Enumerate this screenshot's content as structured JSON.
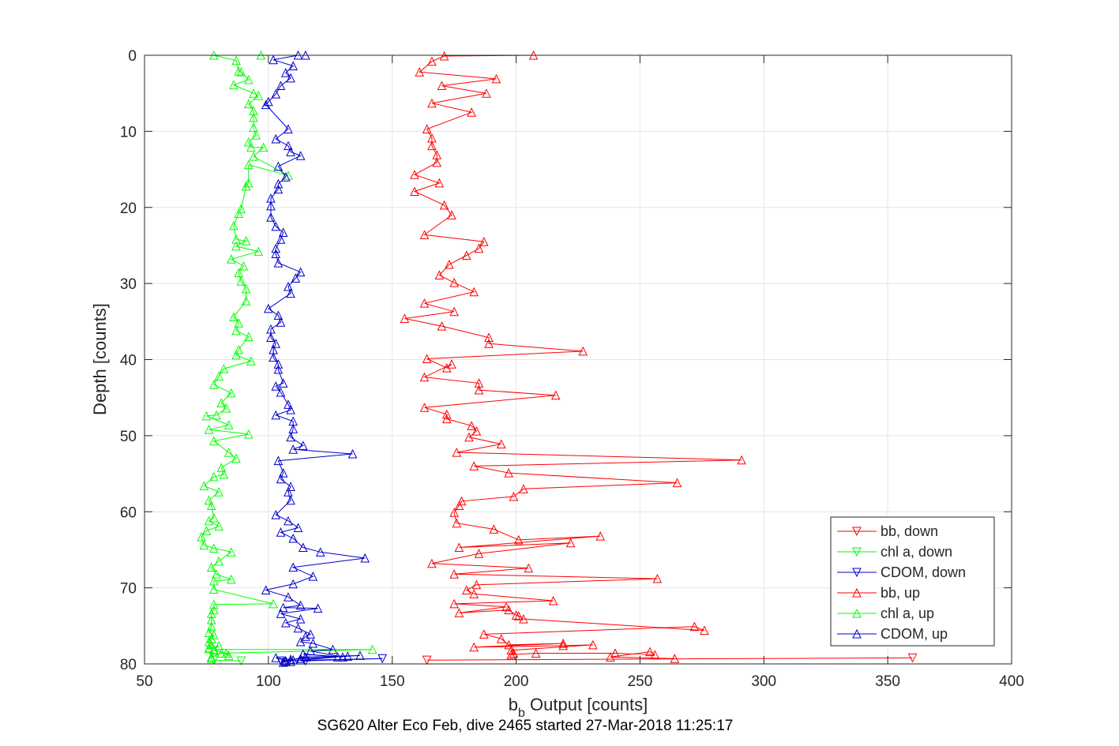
{
  "chart_data": {
    "type": "line",
    "title": "SG620 Alter Eco Feb, dive 2465 started 27-Mar-2018 11:25:17",
    "xlabel": "b_b Output [counts]",
    "xlabel_main": "b",
    "xlabel_sub": "b",
    "xlabel_rest": " Output [counts]",
    "ylabel": "Depth [counts]",
    "xlim": [
      50,
      400
    ],
    "ylim": [
      0,
      80
    ],
    "y_reversed": true,
    "xticks": [
      50,
      100,
      150,
      200,
      250,
      300,
      350,
      400
    ],
    "yticks": [
      0,
      10,
      20,
      30,
      40,
      50,
      60,
      70,
      80
    ],
    "grid": true,
    "legend_position": "bottom-right",
    "colors": {
      "red": "#ff0000",
      "green": "#00ff00",
      "blue": "#0000cc"
    },
    "series": [
      {
        "name": "bb, down",
        "color": "#ff0000",
        "marker": "triangle-down",
        "x": [
          164,
          360
        ],
        "y": [
          79.5,
          79.2
        ]
      },
      {
        "name": "chl a, down",
        "color": "#00ff00",
        "marker": "triangle-down",
        "x": [
          78,
          89
        ],
        "y": [
          79.5,
          79.6
        ]
      },
      {
        "name": "CDOM, down",
        "color": "#0000cc",
        "marker": "triangle-down",
        "x": [
          105,
          146,
          115
        ],
        "y": [
          79.6,
          79.3,
          79.6
        ]
      },
      {
        "name": "bb, up",
        "color": "#ff0000",
        "marker": "triangle-up",
        "x": [
          207,
          171,
          166,
          161,
          192,
          170,
          188,
          166,
          182,
          164,
          166,
          166,
          168,
          168,
          159,
          169,
          159,
          171,
          174,
          163,
          187,
          185,
          180,
          173,
          169,
          175,
          183,
          163,
          175,
          155,
          170,
          189,
          189,
          227,
          164,
          172,
          174,
          163,
          185,
          185,
          216,
          163,
          172,
          172,
          182,
          184,
          181,
          194,
          176,
          291,
          183,
          197,
          265,
          203,
          199,
          178,
          177,
          175,
          176,
          191,
          201,
          234,
          177,
          222,
          185,
          166,
          205,
          175,
          257,
          184,
          180,
          183,
          215,
          175,
          196,
          177,
          197,
          200,
          201,
          203,
          276,
          272,
          187,
          194,
          197,
          219,
          183,
          219,
          231,
          198,
          199,
          198,
          208,
          240,
          256,
          254,
          238,
          264
        ],
        "y": [
          0,
          0.1,
          0.8,
          2.2,
          3.1,
          4,
          5,
          6.3,
          7.5,
          9.7,
          10.9,
          11.9,
          13.1,
          14.1,
          15.7,
          16.8,
          17.9,
          19.7,
          21,
          23.6,
          24.5,
          25.4,
          26.3,
          27.5,
          28.9,
          29.9,
          31.1,
          32.6,
          33.7,
          34.6,
          35.6,
          37.1,
          37.9,
          38.9,
          39.9,
          41.1,
          40.6,
          42.3,
          43.1,
          44,
          44.7,
          46.3,
          47.2,
          47.8,
          48.7,
          49.4,
          50.2,
          51.1,
          52.2,
          53.2,
          54,
          54.9,
          56.2,
          57,
          58,
          58.6,
          59.2,
          60.1,
          61.5,
          62.3,
          63.7,
          63.2,
          64.7,
          64.1,
          65.5,
          66.8,
          67.4,
          68.2,
          68.8,
          69.6,
          70.3,
          70.8,
          71.7,
          72.1,
          72.5,
          73.3,
          72.9,
          73.6,
          73.7,
          74.1,
          75.6,
          75.1,
          76.1,
          76.7,
          77.5,
          77.3,
          77.8,
          77.6,
          77.5,
          78.2,
          78.6,
          78.8,
          78.6,
          78.6,
          78.8,
          78.4,
          79.1,
          79.3
        ]
      },
      {
        "name": "chl a, up",
        "color": "#00ff00",
        "marker": "triangle-up",
        "x": [
          97,
          78,
          87,
          88,
          89,
          92,
          86,
          94,
          96,
          92,
          94,
          94,
          94,
          95,
          92,
          93,
          98,
          94,
          108,
          92,
          92,
          91,
          89,
          88,
          86,
          87,
          91,
          87,
          96,
          85,
          90,
          88,
          89,
          91,
          91,
          86,
          88,
          87,
          92,
          88,
          87,
          93,
          82,
          80,
          78,
          85,
          81,
          83,
          79,
          75,
          84,
          76,
          92,
          78,
          84,
          87,
          81,
          82,
          78,
          74,
          80,
          76,
          77,
          78,
          76,
          80,
          75,
          73,
          74,
          78,
          85,
          80,
          77,
          79,
          85,
          78,
          78,
          102,
          78,
          78,
          77,
          77,
          77,
          76,
          78,
          77,
          76,
          77,
          76,
          76,
          80,
          78,
          83,
          84,
          78,
          142,
          81,
          77,
          77
        ],
        "y": [
          0,
          0,
          0.7,
          2.1,
          2.2,
          3.2,
          3.9,
          5,
          5.3,
          6.4,
          7.3,
          8.2,
          9.5,
          10.5,
          11.4,
          12.1,
          12.1,
          13.3,
          15.8,
          14.4,
          16.8,
          17.2,
          20.2,
          20.8,
          22.4,
          24.2,
          24.4,
          25.1,
          25.8,
          26.8,
          27.7,
          28.6,
          29.7,
          30.7,
          32.3,
          34.4,
          35.2,
          36.2,
          37,
          38.7,
          39.4,
          40.2,
          41.2,
          42.2,
          43.3,
          44.4,
          45.7,
          46.4,
          47.3,
          47.4,
          48.6,
          49.2,
          49.8,
          50.7,
          52.2,
          53,
          54.2,
          55.1,
          55.4,
          56.6,
          57.4,
          58.5,
          59.2,
          60.8,
          61.2,
          61.9,
          62.5,
          63.3,
          64.4,
          64.8,
          65.3,
          66.5,
          67.3,
          68.2,
          68.9,
          69.1,
          70.2,
          72.1,
          72.2,
          72.9,
          73.4,
          74.2,
          75.1,
          75.9,
          76.2,
          76.7,
          77.1,
          77.5,
          77.9,
          78,
          77.6,
          78.2,
          78.6,
          78.9,
          78.1,
          78.1,
          78.6,
          79.1,
          79.3
        ]
      },
      {
        "name": "CDOM, up",
        "color": "#0000cc",
        "marker": "triangle-up",
        "x": [
          115,
          112,
          102,
          110,
          107,
          109,
          105,
          103,
          100,
          99,
          108,
          103,
          108,
          109,
          113,
          104,
          107,
          104,
          104,
          101,
          101,
          101,
          103,
          106,
          105,
          103,
          103,
          104,
          113,
          111,
          108,
          109,
          100,
          104,
          105,
          101,
          101,
          103,
          102,
          102,
          104,
          104,
          106,
          103,
          105,
          108,
          109,
          103,
          110,
          110,
          109,
          114,
          110,
          134,
          104,
          106,
          105,
          109,
          108,
          109,
          103,
          108,
          112,
          105,
          110,
          114,
          121,
          139,
          110,
          118,
          110,
          99,
          108,
          113,
          106,
          120,
          105,
          113,
          107,
          112,
          117,
          115,
          113,
          118,
          126,
          117,
          130,
          114,
          128,
          113,
          113,
          132,
          109,
          137,
          115,
          107,
          109,
          103,
          110,
          107,
          106
        ],
        "y": [
          0,
          0,
          0.6,
          1.4,
          2.3,
          3,
          4,
          5.1,
          6.1,
          6.5,
          9.7,
          11,
          11.9,
          12.7,
          13.2,
          14.6,
          16,
          16.9,
          17.6,
          18.8,
          19.8,
          21.3,
          22.5,
          23.3,
          24.2,
          25.4,
          26.1,
          27.3,
          28.5,
          29.3,
          30.4,
          31.3,
          33.3,
          34.2,
          35.1,
          36,
          37.1,
          37.9,
          38.7,
          39.7,
          40.6,
          41.3,
          43.1,
          43.5,
          44.3,
          45.9,
          46.6,
          47.3,
          48.1,
          49.1,
          50.2,
          51.3,
          51.8,
          52.4,
          53.3,
          54.9,
          55.7,
          56.7,
          57.4,
          58.5,
          60.4,
          61.2,
          62.1,
          62.7,
          63.5,
          64.7,
          65.3,
          66.1,
          67.3,
          68.5,
          69.5,
          70.3,
          71.2,
          72.3,
          72.6,
          72.7,
          73.4,
          74.1,
          74.6,
          75.3,
          76.1,
          76.4,
          77.1,
          77.3,
          78.1,
          78.3,
          79.1,
          78.7,
          79.1,
          79.5,
          79.3,
          79,
          79.4,
          78.9,
          79.1,
          79.6,
          79.7,
          79.2,
          79.5,
          79.7,
          79.8
        ]
      }
    ]
  }
}
